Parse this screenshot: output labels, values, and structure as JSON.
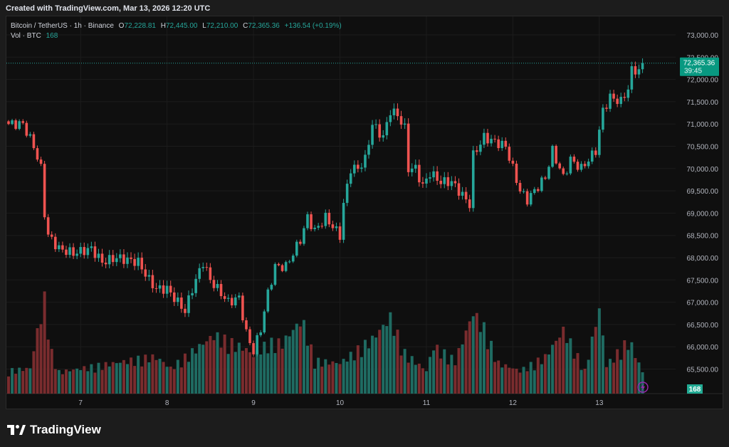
{
  "header": {
    "created": "Created with TradingView.com, Mar 13, 2026 12:20 UTC"
  },
  "legend": {
    "symbol": "Bitcoin / TetherUS · 1h · Binance",
    "o_label": "O",
    "o": "72,228.81",
    "h_label": "H",
    "h": "72,445.00",
    "l_label": "L",
    "l": "72,210.00",
    "c_label": "C",
    "c": "72,365.36",
    "change": "+136.54 (+0.19%)",
    "vol_label": "Vol · BTC",
    "vol": "168"
  },
  "price_tag": {
    "price": "72,365.36",
    "countdown": "39:45"
  },
  "volume_tag": "168",
  "footer": {
    "brand": "TradingView"
  },
  "colors": {
    "up": "#26a69a",
    "down": "#ef5350",
    "vol_up": "#1f6b62",
    "vol_down": "#7a2c2e",
    "bg": "#0f0f0f"
  },
  "chart_data": {
    "type": "candlestick",
    "title": "Bitcoin / TetherUS · 1h · Binance",
    "interval": "1h",
    "ylim": [
      65000,
      73000
    ],
    "y_ticks": [
      "73,000.00",
      "72,500.00",
      "72,000.00",
      "71,500.00",
      "71,000.00",
      "70,500.00",
      "70,000.00",
      "69,500.00",
      "69,000.00",
      "68,500.00",
      "68,000.00",
      "67,500.00",
      "67,000.00",
      "66,500.00",
      "66,000.00",
      "65,500.00"
    ],
    "y_tick_values": [
      73000,
      72500,
      72000,
      71500,
      71000,
      70500,
      70000,
      69500,
      69000,
      68500,
      68000,
      67500,
      67000,
      66500,
      66000,
      65500
    ],
    "x_ticks": [
      {
        "label": "7",
        "hour": 20
      },
      {
        "label": "8",
        "hour": 44
      },
      {
        "label": "9",
        "hour": 68
      },
      {
        "label": "10",
        "hour": 92
      },
      {
        "label": "11",
        "hour": 116
      },
      {
        "label": "12",
        "hour": 140
      },
      {
        "label": "13",
        "hour": 164
      }
    ],
    "hours": 177,
    "close_keypoints": [
      [
        0,
        71000
      ],
      [
        4,
        71000
      ],
      [
        7,
        70500
      ],
      [
        9,
        70000
      ],
      [
        10,
        69000
      ],
      [
        11,
        68500
      ],
      [
        14,
        68200
      ],
      [
        18,
        68100
      ],
      [
        23,
        68200
      ],
      [
        26,
        67900
      ],
      [
        30,
        68000
      ],
      [
        36,
        67900
      ],
      [
        39,
        67500
      ],
      [
        41,
        67300
      ],
      [
        44,
        67300
      ],
      [
        47,
        67000
      ],
      [
        49,
        66800
      ],
      [
        51,
        67300
      ],
      [
        54,
        67900
      ],
      [
        56,
        67500
      ],
      [
        59,
        67200
      ],
      [
        61,
        67000
      ],
      [
        64,
        67100
      ],
      [
        66,
        66300
      ],
      [
        68,
        65900
      ],
      [
        70,
        66400
      ],
      [
        72,
        67200
      ],
      [
        74,
        67800
      ],
      [
        77,
        67800
      ],
      [
        79,
        68100
      ],
      [
        81,
        68400
      ],
      [
        83,
        68900
      ],
      [
        85,
        68600
      ],
      [
        88,
        68900
      ],
      [
        90,
        68700
      ],
      [
        92,
        68500
      ],
      [
        93,
        69200
      ],
      [
        95,
        70000
      ],
      [
        97,
        70000
      ],
      [
        99,
        70200
      ],
      [
        101,
        71000
      ],
      [
        104,
        70700
      ],
      [
        106,
        71300
      ],
      [
        108,
        71200
      ],
      [
        110,
        70900
      ],
      [
        111,
        70000
      ],
      [
        113,
        70000
      ],
      [
        115,
        69600
      ],
      [
        117,
        69900
      ],
      [
        120,
        69700
      ],
      [
        123,
        69700
      ],
      [
        125,
        69500
      ],
      [
        128,
        69200
      ],
      [
        129,
        70300
      ],
      [
        132,
        70700
      ],
      [
        135,
        70600
      ],
      [
        138,
        70500
      ],
      [
        140,
        70000
      ],
      [
        142,
        69500
      ],
      [
        144,
        69300
      ],
      [
        146,
        69500
      ],
      [
        149,
        69800
      ],
      [
        151,
        70400
      ],
      [
        154,
        69800
      ],
      [
        156,
        70200
      ],
      [
        159,
        70000
      ],
      [
        161,
        70200
      ],
      [
        163,
        70400
      ],
      [
        165,
        71300
      ],
      [
        167,
        71600
      ],
      [
        170,
        71500
      ],
      [
        172,
        71800
      ],
      [
        173,
        72200
      ],
      [
        175,
        72228.81
      ],
      [
        176,
        72365.36
      ]
    ],
    "volume_keypoints": [
      [
        0,
        180
      ],
      [
        6,
        200
      ],
      [
        8,
        490
      ],
      [
        10,
        740
      ],
      [
        12,
        320
      ],
      [
        14,
        170
      ],
      [
        40,
        290
      ],
      [
        42,
        270
      ],
      [
        45,
        200
      ],
      [
        57,
        460
      ],
      [
        66,
        350
      ],
      [
        68,
        300
      ],
      [
        72,
        400
      ],
      [
        76,
        400
      ],
      [
        81,
        570
      ],
      [
        82,
        540
      ],
      [
        85,
        260
      ],
      [
        92,
        240
      ],
      [
        101,
        430
      ],
      [
        106,
        600
      ],
      [
        110,
        320
      ],
      [
        116,
        180
      ],
      [
        118,
        375
      ],
      [
        124,
        260
      ],
      [
        129,
        640
      ],
      [
        132,
        515
      ],
      [
        136,
        240
      ],
      [
        142,
        180
      ],
      [
        149,
        290
      ],
      [
        154,
        500
      ],
      [
        156,
        400
      ],
      [
        160,
        180
      ],
      [
        164,
        670
      ],
      [
        166,
        224
      ],
      [
        172,
        414
      ],
      [
        173,
        375
      ],
      [
        176,
        168
      ]
    ]
  }
}
